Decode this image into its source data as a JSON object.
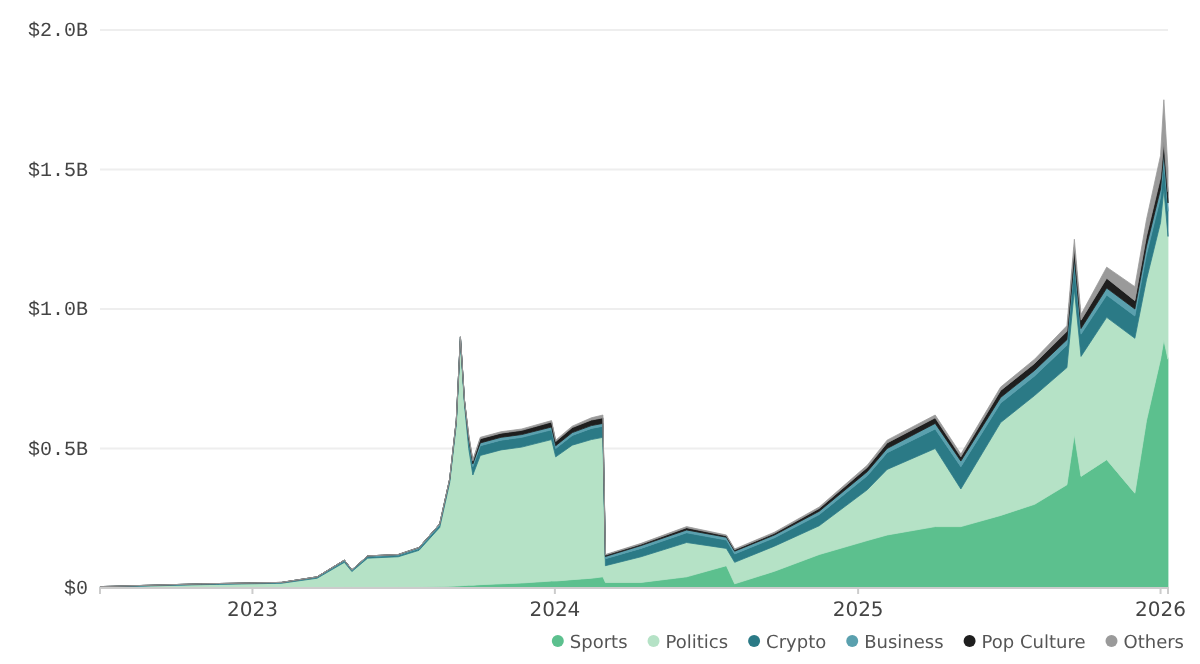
{
  "chart_data": {
    "type": "area",
    "stacked": true,
    "x": [
      "2022-07-01",
      "2022-11-01",
      "2023-02-05",
      "2023-03-20",
      "2023-04-22",
      "2023-05-01",
      "2023-05-20",
      "2023-06-26",
      "2023-07-21",
      "2023-08-15",
      "2023-08-27",
      "2023-09-04",
      "2023-09-09",
      "2023-09-14",
      "2023-09-19",
      "2023-09-24",
      "2023-10-03",
      "2023-10-28",
      "2023-11-22",
      "2023-12-28",
      "2024-01-02",
      "2024-01-22",
      "2024-02-14",
      "2024-02-28",
      "2024-03-02",
      "2024-04-14",
      "2024-06-08",
      "2024-07-26",
      "2024-08-05",
      "2024-09-22",
      "2024-11-15",
      "2025-01-12",
      "2025-02-05",
      "2025-04-04",
      "2025-05-05",
      "2025-06-22",
      "2025-08-02",
      "2025-09-10",
      "2025-09-19",
      "2025-09-27",
      "2025-10-28",
      "2025-12-01",
      "2025-12-15",
      "2026-01-01",
      "2026-01-05",
      "2026-01-10"
    ],
    "series": [
      {
        "name": "Sports",
        "color": "#5cc08e",
        "values": [
          0,
          0,
          0,
          0,
          0.002,
          0.002,
          0.003,
          0.003,
          0.004,
          0.005,
          0.006,
          0.007,
          0.008,
          0.009,
          0.01,
          0.01,
          0.012,
          0.015,
          0.018,
          0.025,
          0.025,
          0.03,
          0.035,
          0.04,
          0.02,
          0.02,
          0.04,
          0.08,
          0.015,
          0.06,
          0.12,
          0.17,
          0.19,
          0.22,
          0.22,
          0.26,
          0.3,
          0.37,
          0.55,
          0.4,
          0.46,
          0.34,
          0.6,
          0.82,
          0.89,
          0.82
        ]
      },
      {
        "name": "Politics",
        "color": "#b5e2c6",
        "values": [
          0.003,
          0.012,
          0.017,
          0.035,
          0.09,
          0.057,
          0.104,
          0.109,
          0.131,
          0.212,
          0.371,
          0.578,
          0.877,
          0.646,
          0.49,
          0.395,
          0.463,
          0.48,
          0.487,
          0.507,
          0.445,
          0.482,
          0.497,
          0.5,
          0.06,
          0.092,
          0.123,
          0.062,
          0.077,
          0.09,
          0.103,
          0.182,
          0.235,
          0.28,
          0.135,
          0.333,
          0.39,
          0.42,
          0.52,
          0.43,
          0.51,
          0.555,
          0.505,
          0.49,
          0.54,
          0.44
        ]
      },
      {
        "name": "Crypto",
        "color": "#2b7a86",
        "values": [
          0.001,
          0.002,
          0.002,
          0.003,
          0.005,
          0.004,
          0.005,
          0.005,
          0.006,
          0.008,
          0.008,
          0.01,
          0.01,
          0.01,
          0.025,
          0.03,
          0.035,
          0.035,
          0.035,
          0.035,
          0.03,
          0.035,
          0.04,
          0.04,
          0.025,
          0.03,
          0.035,
          0.03,
          0.03,
          0.03,
          0.04,
          0.05,
          0.06,
          0.07,
          0.08,
          0.07,
          0.07,
          0.08,
          0.09,
          0.08,
          0.08,
          0.08,
          0.09,
          0.09,
          0.1,
          0.09
        ]
      },
      {
        "name": "Business",
        "color": "#5aa0ae",
        "values": [
          0.001,
          0.001,
          0.001,
          0.002,
          0.003,
          0.002,
          0.003,
          0.003,
          0.004,
          0.005,
          0.005,
          0.005,
          0.005,
          0.005,
          0.01,
          0.01,
          0.01,
          0.01,
          0.01,
          0.01,
          0.01,
          0.01,
          0.01,
          0.01,
          0.008,
          0.01,
          0.01,
          0.01,
          0.01,
          0.01,
          0.012,
          0.015,
          0.015,
          0.02,
          0.02,
          0.02,
          0.02,
          0.02,
          0.02,
          0.02,
          0.025,
          0.025,
          0.03,
          0.03,
          0.03,
          0.03
        ]
      },
      {
        "name": "Pop Culture",
        "color": "#1e1e1e",
        "values": [
          0,
          0,
          0,
          0,
          0,
          0,
          0,
          0,
          0,
          0,
          0,
          0,
          0,
          0,
          0.01,
          0.01,
          0.015,
          0.015,
          0.015,
          0.018,
          0.015,
          0.018,
          0.02,
          0.02,
          0.005,
          0.005,
          0.008,
          0.005,
          0.005,
          0.006,
          0.01,
          0.015,
          0.02,
          0.02,
          0.015,
          0.025,
          0.025,
          0.03,
          0.04,
          0.03,
          0.035,
          0.03,
          0.035,
          0.04,
          0.04,
          0.04
        ]
      },
      {
        "name": "Others",
        "color": "#9a9a9a",
        "values": [
          0,
          0,
          0,
          0,
          0,
          0,
          0,
          0,
          0,
          0,
          0,
          0,
          0,
          0,
          0.005,
          0.005,
          0.005,
          0.005,
          0.005,
          0.005,
          0.005,
          0.005,
          0.008,
          0.01,
          0.002,
          0.003,
          0.004,
          0.003,
          0.003,
          0.004,
          0.005,
          0.008,
          0.01,
          0.01,
          0.01,
          0.012,
          0.015,
          0.02,
          0.03,
          0.02,
          0.04,
          0.05,
          0.06,
          0.08,
          0.15,
          0.08
        ]
      }
    ],
    "ylim": [
      0,
      2
    ],
    "yticks": [
      {
        "value": 0,
        "label": "$0"
      },
      {
        "value": 0.5,
        "label": "$0.5B"
      },
      {
        "value": 1,
        "label": "$1.0B"
      },
      {
        "value": 1.5,
        "label": "$1.5B"
      },
      {
        "value": 2,
        "label": "$2.0B"
      }
    ],
    "xlim": [
      "2022-07-01",
      "2026-01-10"
    ],
    "xticks": [
      {
        "value": "2023-01-01",
        "label": "2023"
      },
      {
        "value": "2024-01-01",
        "label": "2024"
      },
      {
        "value": "2025-01-01",
        "label": "2025"
      },
      {
        "value": "2026-01-01",
        "label": "2026"
      }
    ],
    "grid": "y",
    "legend": "bottom right"
  }
}
